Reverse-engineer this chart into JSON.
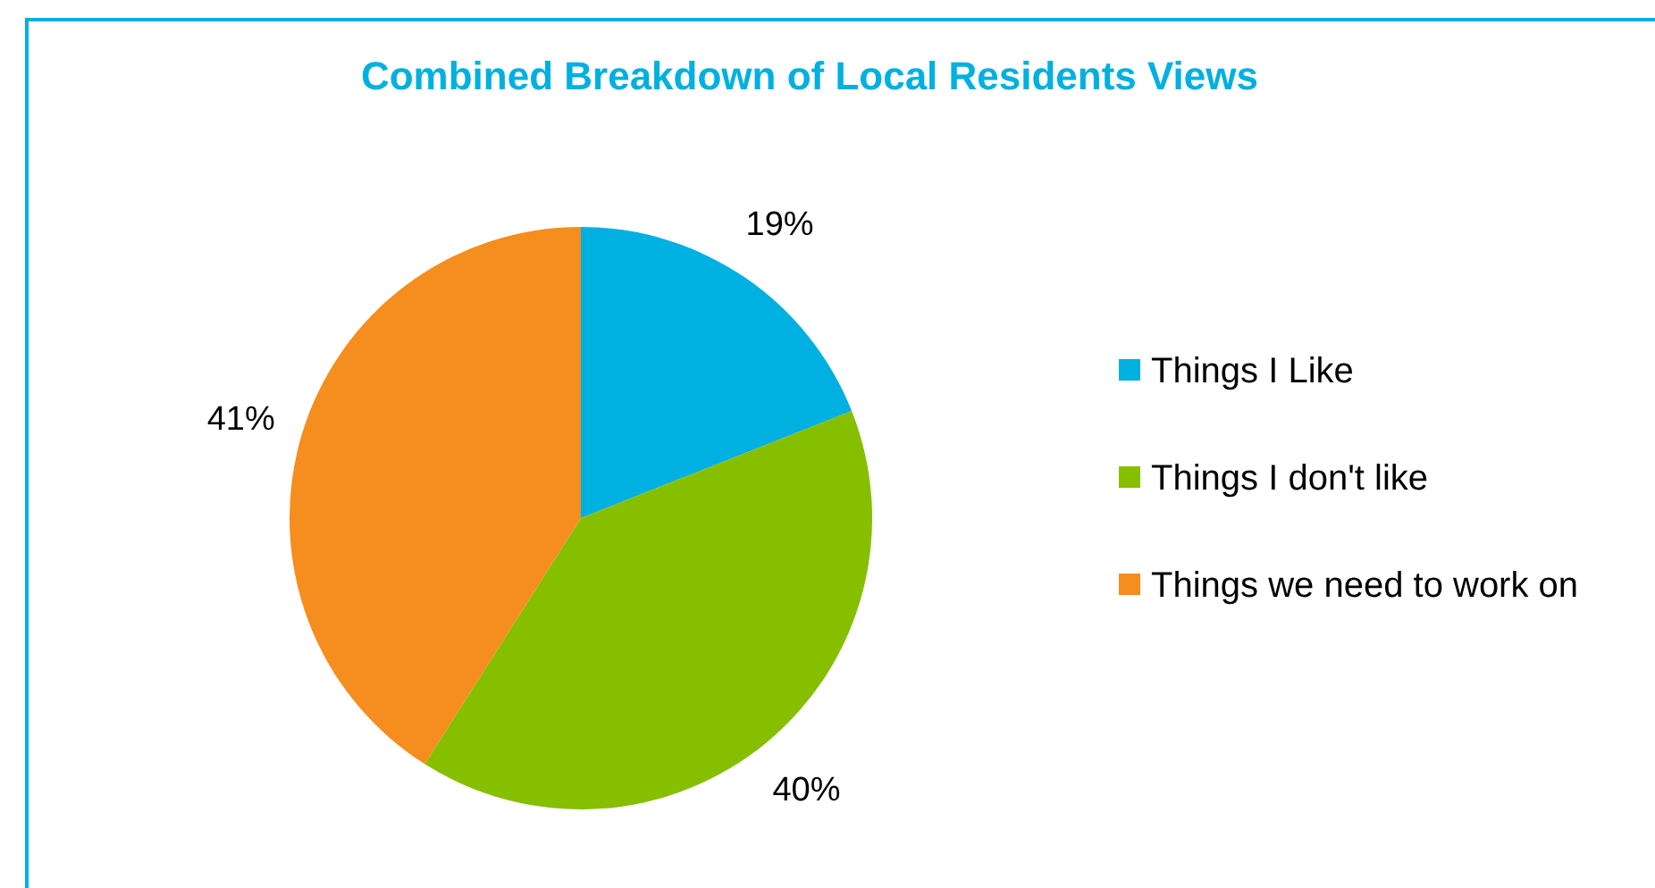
{
  "chart_data": {
    "type": "pie",
    "title": "Combined Breakdown of Local Residents Views",
    "categories": [
      "Things I Like",
      "Things I don't like",
      "Things we need to work on"
    ],
    "values": [
      19,
      40,
      41
    ],
    "colors": [
      "#00b0e0",
      "#86bf00",
      "#f58d1f"
    ],
    "value_labels": [
      "19%",
      "40%",
      "41%"
    ],
    "legend": "right"
  }
}
